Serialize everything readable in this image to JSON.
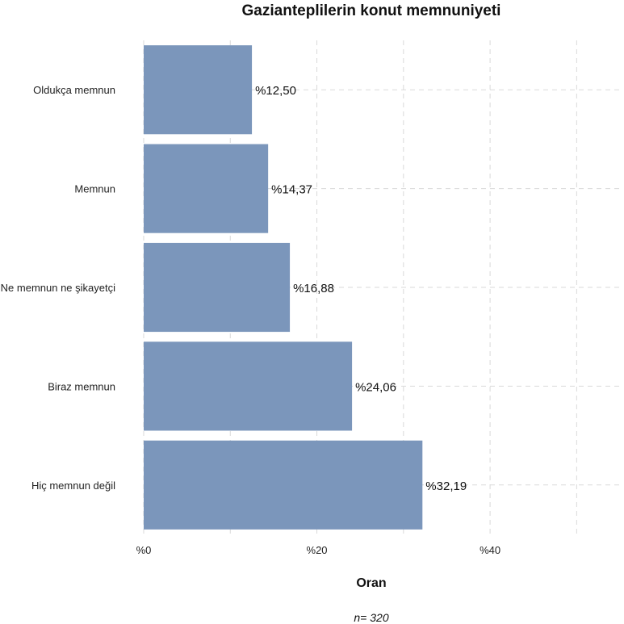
{
  "chart_data": {
    "type": "bar",
    "orientation": "horizontal",
    "title": "Gazianteplilerin konut memnuniyeti",
    "xlabel": "Oran",
    "ylabel": "",
    "caption": "n= 320",
    "categories": [
      "Oldukça memnun",
      "Memnun",
      "Ne memnun ne şikayetçi",
      "Biraz memnun",
      "Hiç memnun değil"
    ],
    "values": [
      12.5,
      14.37,
      16.88,
      24.06,
      32.19
    ],
    "value_labels": [
      "%12,50",
      "%14,37",
      "%16,88",
      "%24,06",
      "%32,19"
    ],
    "xlim": [
      0,
      55
    ],
    "x_ticks": [
      0,
      20,
      40
    ],
    "x_tick_labels": [
      "%0",
      "%20",
      "%40"
    ],
    "grid": true,
    "bar_color": "#7b96bb"
  }
}
